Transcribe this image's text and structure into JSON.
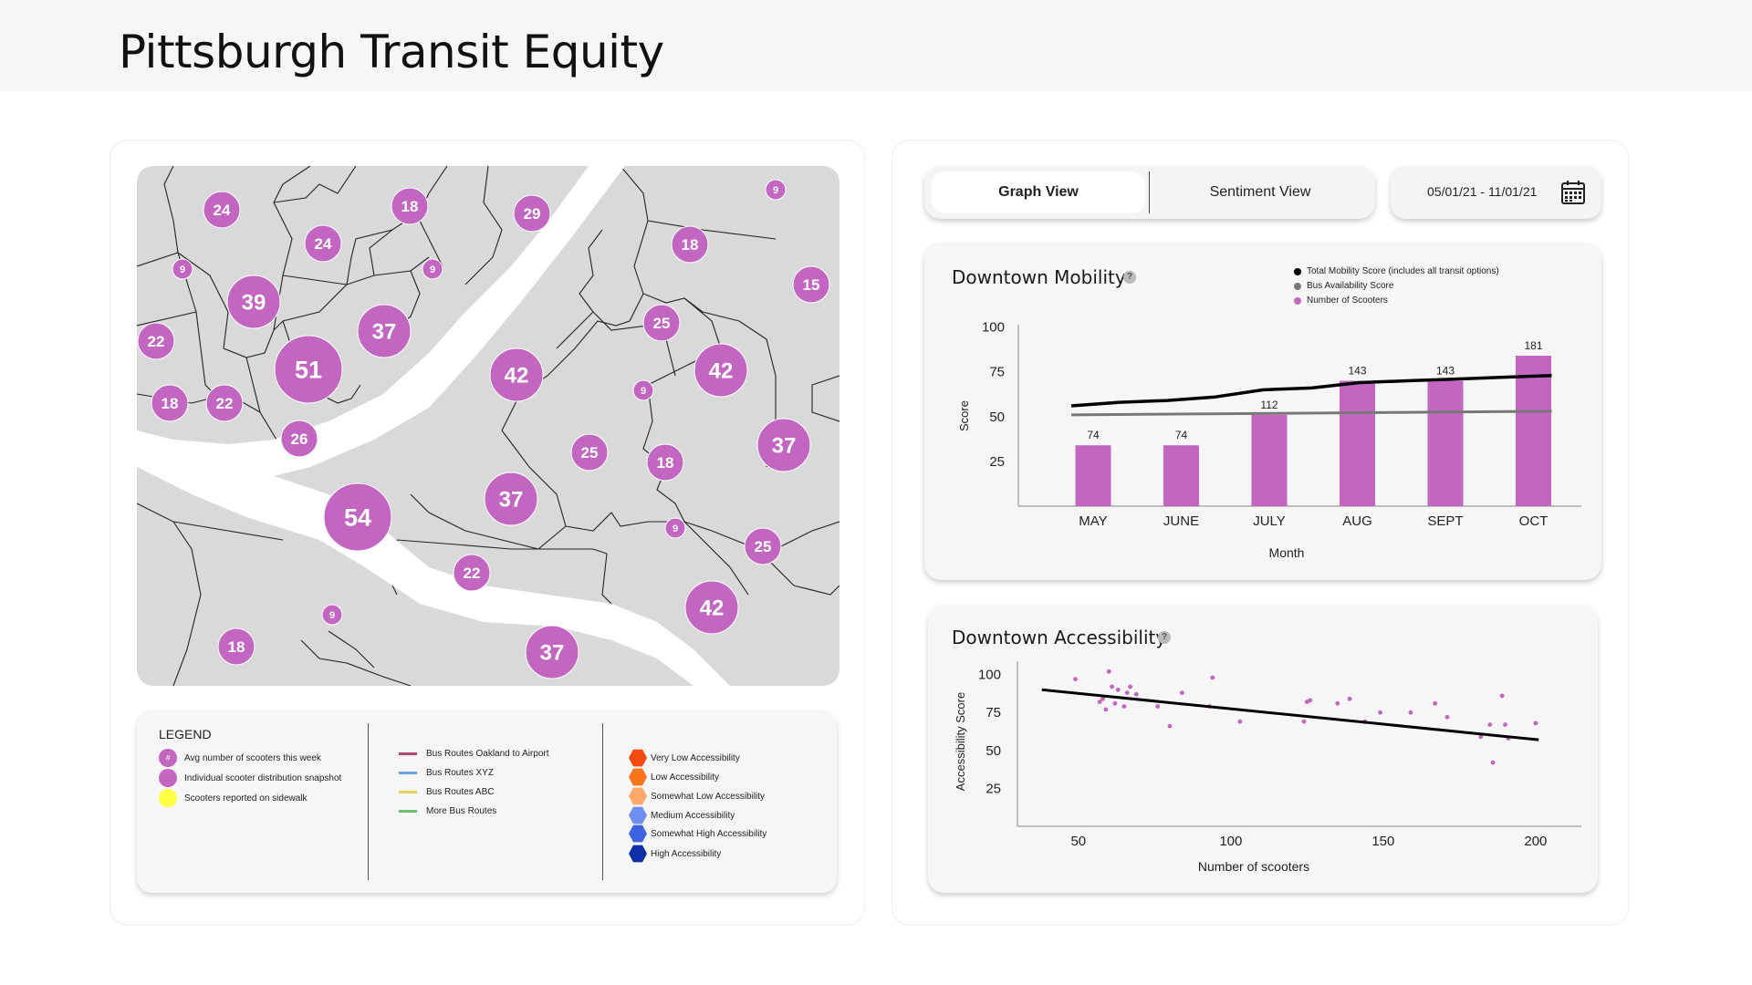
{
  "page": {
    "title": "Pittsburgh Transit Equity"
  },
  "map": {
    "clusters": [
      {
        "value": "24",
        "size": "small"
      },
      {
        "value": "18",
        "size": "small"
      },
      {
        "value": "29",
        "size": "small"
      },
      {
        "value": "9",
        "size": "tiny"
      },
      {
        "value": "24",
        "size": "small"
      },
      {
        "value": "18",
        "size": "small"
      },
      {
        "value": "9",
        "size": "tiny"
      },
      {
        "value": "9",
        "size": "tiny"
      },
      {
        "value": "15",
        "size": "small"
      },
      {
        "value": "39",
        "size": "medium"
      },
      {
        "value": "22",
        "size": "small"
      },
      {
        "value": "37",
        "size": "medium"
      },
      {
        "value": "25",
        "size": "small"
      },
      {
        "value": "51",
        "size": "large"
      },
      {
        "value": "42",
        "size": "medium"
      },
      {
        "value": "42",
        "size": "medium"
      },
      {
        "value": "18",
        "size": "small"
      },
      {
        "value": "22",
        "size": "small"
      },
      {
        "value": "9",
        "size": "tiny"
      },
      {
        "value": "26",
        "size": "small"
      },
      {
        "value": "25",
        "size": "small"
      },
      {
        "value": "37",
        "size": "medium"
      },
      {
        "value": "18",
        "size": "small"
      },
      {
        "value": "37",
        "size": "medium"
      },
      {
        "value": "54",
        "size": "large"
      },
      {
        "value": "9",
        "size": "tiny"
      },
      {
        "value": "25",
        "size": "small"
      },
      {
        "value": "22",
        "size": "small"
      },
      {
        "value": "42",
        "size": "medium"
      },
      {
        "value": "9",
        "size": "tiny"
      },
      {
        "value": "18",
        "size": "small"
      },
      {
        "value": "37",
        "size": "medium"
      }
    ]
  },
  "legend": {
    "title": "LEGEND",
    "markers": [
      {
        "label": "Avg number of scooters this week",
        "symbol": "#",
        "color": "#c266c2"
      },
      {
        "label": "Individual scooter distribution snapshot",
        "color": "#c266c2"
      },
      {
        "label": "Scooters reported on sidewalk",
        "color": "#ffff44"
      }
    ],
    "routes": [
      {
        "label": "Bus Routes Oakland to Airport",
        "color": "#b04a6e"
      },
      {
        "label": "Bus Routes XYZ",
        "color": "#6aa0e0"
      },
      {
        "label": "Bus Routes ABC",
        "color": "#e6d25a"
      },
      {
        "label": "More Bus Routes",
        "color": "#6cc06c"
      }
    ],
    "accessibility": [
      {
        "label": "Very Low Accessibility",
        "color": "#f24b12"
      },
      {
        "label": "Low Accessibility",
        "color": "#f9731a"
      },
      {
        "label": "Somewhat Low Accessibility",
        "color": "#ffa86a"
      },
      {
        "label": "Medium Accessibility",
        "color": "#6e8ff0"
      },
      {
        "label": "Somewhat High Accessibility",
        "color": "#3d62e0"
      },
      {
        "label": "High Accessibility",
        "color": "#0f2fa8"
      }
    ]
  },
  "tabs": {
    "graph_view": "Graph View",
    "sentiment_view": "Sentiment View"
  },
  "date_range": {
    "label": "05/01/21 - 11/01/21"
  },
  "mobility": {
    "title": "Downtown Mobility",
    "help": "?",
    "legend": [
      {
        "label": "Total Mobility Score (includes all transit options)",
        "color": "#000000"
      },
      {
        "label": "Bus Availability Score",
        "color": "#777777"
      },
      {
        "label": "Number of Scooters",
        "color": "#c266c2"
      }
    ]
  },
  "accessibility": {
    "title": "Downtown Accessibility",
    "help": "?"
  },
  "chart_data": [
    {
      "type": "bar",
      "title": "Downtown Mobility",
      "xlabel": "Month",
      "ylabel": "Score",
      "categories": [
        "MAY",
        "JUNE",
        "JULY",
        "AUG",
        "SEPT",
        "OCT"
      ],
      "yticks": [
        25,
        50,
        75,
        100
      ],
      "ylim": [
        0,
        110
      ],
      "series": [
        {
          "name": "Number of Scooters",
          "kind": "bar",
          "color": "#c266c2",
          "values": [
            34,
            34,
            51,
            70,
            70,
            84
          ],
          "labels": [
            "74",
            "74",
            "112",
            "143",
            "143",
            "181"
          ]
        },
        {
          "name": "Total Mobility Score (includes all transit options)",
          "kind": "line",
          "color": "#000000",
          "x": [
            0,
            0.5,
            1,
            1.5,
            2,
            2.5,
            3,
            3.5,
            4,
            4.5,
            5
          ],
          "values": [
            56,
            58,
            59,
            61,
            65,
            66,
            69,
            70,
            71,
            72,
            73
          ]
        },
        {
          "name": "Bus Availability Score",
          "kind": "line",
          "color": "#777777",
          "x": [
            0,
            5
          ],
          "values": [
            51,
            53
          ]
        }
      ]
    },
    {
      "type": "scatter",
      "title": "Downtown Accessibility",
      "xlabel": "Number of scooters",
      "ylabel": "Accessibility Score",
      "xticks": [
        50,
        100,
        150,
        200
      ],
      "yticks": [
        25,
        50,
        75,
        100
      ],
      "xlim": [
        30,
        215
      ],
      "ylim": [
        0,
        110
      ],
      "color": "#c266c2",
      "points": [
        {
          "x": 49,
          "y": 97
        },
        {
          "x": 57,
          "y": 82
        },
        {
          "x": 58,
          "y": 84
        },
        {
          "x": 59,
          "y": 77
        },
        {
          "x": 60,
          "y": 102
        },
        {
          "x": 61,
          "y": 92
        },
        {
          "x": 62,
          "y": 81
        },
        {
          "x": 63,
          "y": 90
        },
        {
          "x": 65,
          "y": 79
        },
        {
          "x": 66,
          "y": 88
        },
        {
          "x": 67,
          "y": 92
        },
        {
          "x": 69,
          "y": 87
        },
        {
          "x": 76,
          "y": 79
        },
        {
          "x": 80,
          "y": 66
        },
        {
          "x": 84,
          "y": 88
        },
        {
          "x": 93,
          "y": 79
        },
        {
          "x": 94,
          "y": 98
        },
        {
          "x": 103,
          "y": 69
        },
        {
          "x": 124,
          "y": 69
        },
        {
          "x": 125,
          "y": 82
        },
        {
          "x": 126,
          "y": 83
        },
        {
          "x": 135,
          "y": 81
        },
        {
          "x": 139,
          "y": 84
        },
        {
          "x": 144,
          "y": 69
        },
        {
          "x": 149,
          "y": 75
        },
        {
          "x": 159,
          "y": 75
        },
        {
          "x": 167,
          "y": 81
        },
        {
          "x": 171,
          "y": 72
        },
        {
          "x": 182,
          "y": 59
        },
        {
          "x": 185,
          "y": 67
        },
        {
          "x": 186,
          "y": 42
        },
        {
          "x": 189,
          "y": 86
        },
        {
          "x": 190,
          "y": 67
        },
        {
          "x": 191,
          "y": 58
        },
        {
          "x": 200,
          "y": 68
        }
      ],
      "trendline": {
        "x": [
          38,
          201
        ],
        "y": [
          90,
          57
        ]
      }
    }
  ]
}
